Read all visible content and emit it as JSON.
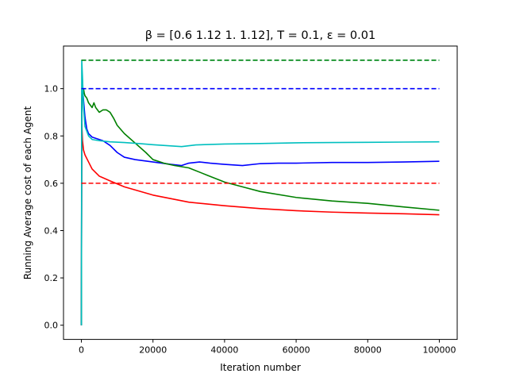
{
  "chart_data": {
    "type": "line",
    "title": "β = [0.6  1.12 1.   1.12], T = 0.1, ε = 0.01",
    "xlabel": "Iteration number",
    "ylabel": "Running Average cost of each Agent",
    "xlim": [
      -5000,
      105000
    ],
    "ylim": [
      -0.06,
      1.18
    ],
    "xticks": [
      0,
      20000,
      40000,
      60000,
      80000,
      100000
    ],
    "xtick_labels": [
      "0",
      "20000",
      "40000",
      "60000",
      "80000",
      "100000"
    ],
    "yticks": [
      0.0,
      0.2,
      0.4,
      0.6,
      0.8,
      1.0
    ],
    "ytick_labels": [
      "0.0",
      "0.2",
      "0.4",
      "0.6",
      "0.8",
      "1.0"
    ],
    "grid": false,
    "series": [
      {
        "color": "#ff0000",
        "style": "solid",
        "x": [
          0,
          100,
          300,
          600,
          1000,
          2000,
          3000,
          5000,
          8000,
          12000,
          20000,
          30000,
          40000,
          50000,
          60000,
          70000,
          80000,
          90000,
          100000
        ],
        "y": [
          0.0,
          0.85,
          0.78,
          0.74,
          0.72,
          0.69,
          0.66,
          0.63,
          0.61,
          0.585,
          0.55,
          0.52,
          0.505,
          0.493,
          0.484,
          0.478,
          0.474,
          0.471,
          0.467
        ]
      },
      {
        "color": "#0000ff",
        "style": "solid",
        "x": [
          0,
          100,
          300,
          600,
          1000,
          1500,
          2000,
          3000,
          4000,
          6000,
          8000,
          10000,
          12000,
          15000,
          20000,
          25000,
          28000,
          30000,
          33000,
          36000,
          40000,
          45000,
          50000,
          55000,
          60000,
          70000,
          80000,
          90000,
          100000
        ],
        "y": [
          0.0,
          0.9,
          1.01,
          0.95,
          0.88,
          0.83,
          0.81,
          0.795,
          0.79,
          0.78,
          0.76,
          0.73,
          0.71,
          0.7,
          0.69,
          0.68,
          0.675,
          0.685,
          0.69,
          0.685,
          0.68,
          0.675,
          0.683,
          0.685,
          0.685,
          0.688,
          0.688,
          0.69,
          0.693
        ]
      },
      {
        "color": "#008000",
        "style": "solid",
        "x": [
          0,
          100,
          200,
          400,
          600,
          800,
          1000,
          1500,
          2000,
          2500,
          3000,
          3500,
          4000,
          5000,
          6000,
          7000,
          8000,
          9000,
          10000,
          12000,
          15000,
          18000,
          20000,
          23000,
          26000,
          30000,
          35000,
          40000,
          45000,
          50000,
          60000,
          70000,
          80000,
          90000,
          100000
        ],
        "y": [
          0.0,
          0.95,
          1.06,
          0.99,
          1.0,
          0.98,
          0.97,
          0.96,
          0.94,
          0.93,
          0.92,
          0.94,
          0.92,
          0.9,
          0.91,
          0.91,
          0.9,
          0.875,
          0.845,
          0.81,
          0.77,
          0.73,
          0.7,
          0.685,
          0.675,
          0.665,
          0.635,
          0.605,
          0.585,
          0.565,
          0.54,
          0.525,
          0.515,
          0.5,
          0.486
        ]
      },
      {
        "color": "#00bfbf",
        "style": "solid",
        "x": [
          0,
          100,
          300,
          600,
          1000,
          2000,
          3000,
          5000,
          8000,
          12000,
          16000,
          20000,
          25000,
          28000,
          32000,
          40000,
          50000,
          60000,
          70000,
          80000,
          90000,
          100000
        ],
        "y": [
          0.0,
          1.12,
          1.05,
          0.92,
          0.84,
          0.8,
          0.785,
          0.78,
          0.775,
          0.772,
          0.768,
          0.763,
          0.758,
          0.755,
          0.762,
          0.766,
          0.768,
          0.771,
          0.772,
          0.773,
          0.774,
          0.775
        ]
      },
      {
        "color": "#ff0000",
        "style": "dashed",
        "x": [
          0,
          100000
        ],
        "y": [
          0.6,
          0.6
        ]
      },
      {
        "color": "#0000ff",
        "style": "dashed",
        "x": [
          0,
          100000
        ],
        "y": [
          1.0,
          1.0
        ]
      },
      {
        "color": "#00bfbf",
        "style": "dashed",
        "x": [
          0,
          100000
        ],
        "y": [
          1.12,
          1.12
        ]
      },
      {
        "color": "#008000",
        "style": "dashed",
        "x": [
          0,
          100000
        ],
        "y": [
          1.12,
          1.12
        ]
      }
    ]
  }
}
